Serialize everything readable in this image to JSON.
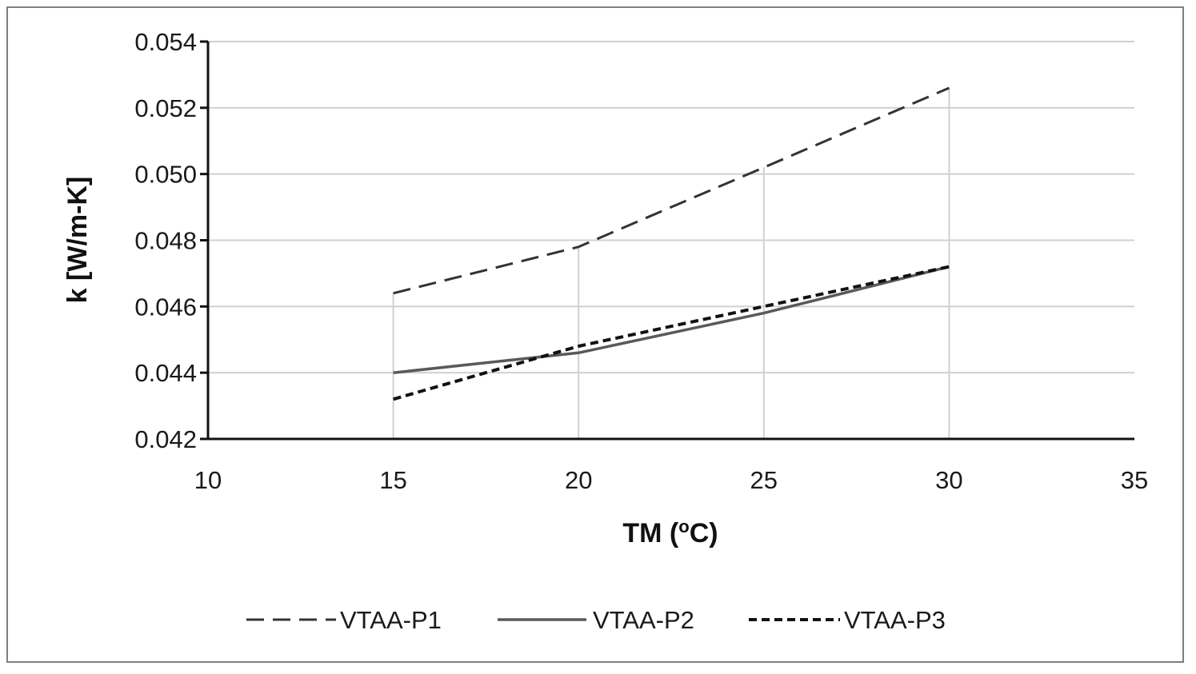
{
  "chart_data": {
    "type": "line",
    "title": "",
    "xlabel": "TM (",
    "xlabel_sup": "o",
    "xlabel_tail": "C)",
    "ylabel": "k [W/m-K]",
    "xlim": [
      10,
      35
    ],
    "ylim": [
      0.042,
      0.054
    ],
    "x_ticks": [
      "10",
      "15",
      "20",
      "25",
      "30",
      "35"
    ],
    "y_ticks": [
      "0.042",
      "0.044",
      "0.046",
      "0.048",
      "0.050",
      "0.052",
      "0.054"
    ],
    "grid": true,
    "legend_position": "bottom",
    "x": [
      15,
      20,
      25,
      30
    ],
    "series": [
      {
        "name": "VTAA-P1",
        "values": [
          0.0464,
          0.0478,
          0.0502,
          0.0526
        ],
        "style": "long-dash",
        "color": "#333333"
      },
      {
        "name": "VTAA-P2",
        "values": [
          0.044,
          0.0446,
          0.0458,
          0.0472
        ],
        "style": "solid",
        "color": "#595959"
      },
      {
        "name": "VTAA-P3",
        "values": [
          0.0432,
          0.0448,
          0.046,
          0.0472
        ],
        "style": "short-dash",
        "color": "#111111"
      }
    ]
  }
}
